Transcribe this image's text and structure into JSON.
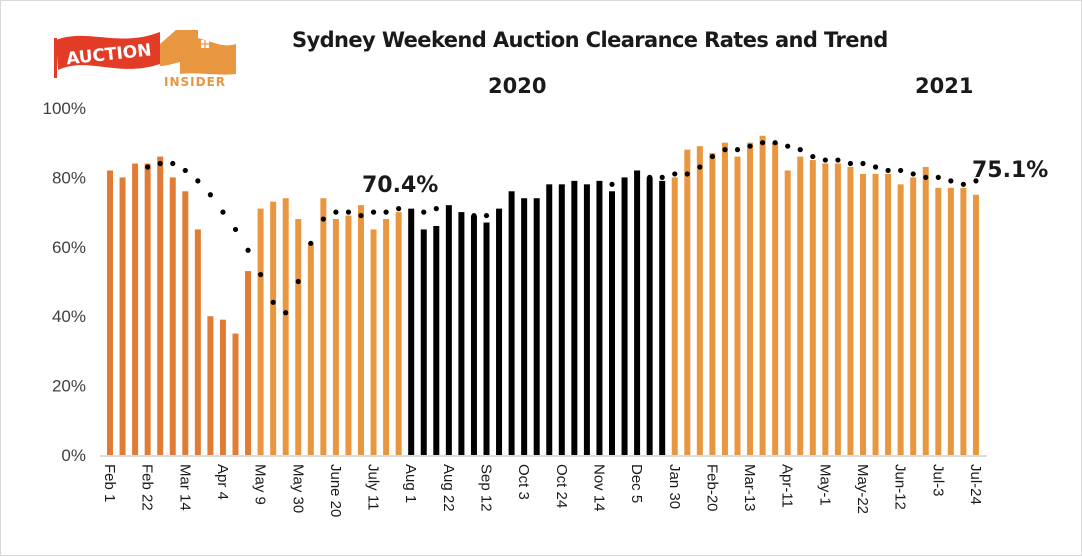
{
  "logo": {
    "word1": "AUCTION",
    "word2": "INSIDER",
    "colors": {
      "red": "#e23b26",
      "orange": "#e8963f"
    }
  },
  "chart_data": {
    "type": "bar",
    "title": "Sydney Weekend Auction Clearance Rates and Trend",
    "year_labels": [
      "2020",
      "2021"
    ],
    "xlabel": "",
    "ylabel": "",
    "ylim": [
      0,
      100
    ],
    "yticks": [
      "0%",
      "20%",
      "40%",
      "60%",
      "80%",
      "100%"
    ],
    "grid": false,
    "tick_labels": [
      "Feb 1",
      "Feb 22",
      "Mar 14",
      "Apr 4",
      "May 9",
      "May 30",
      "June 20",
      "July 11",
      "Aug 1",
      "Aug 22",
      "Sep 12",
      "Oct 3",
      "Oct 24",
      "Nov 14",
      "Dec 5",
      "Jan 30",
      "Feb-20",
      "Mar-13",
      "Apr-11",
      "May-1",
      "May-22",
      "Jun-12",
      "Jul-3",
      "Jul-24"
    ],
    "tick_every": 3,
    "series": [
      {
        "name": "Clearance rate",
        "values": [
          82,
          80,
          84,
          84,
          86,
          80,
          76,
          65,
          40,
          39,
          35,
          53,
          71,
          73,
          74,
          68,
          61,
          74,
          68,
          69,
          72,
          65,
          68,
          70,
          71,
          65,
          66,
          72,
          70,
          69,
          67,
          71,
          76,
          74,
          74,
          78,
          78,
          79,
          78,
          79,
          76,
          80,
          82,
          80,
          79,
          80,
          88,
          89,
          87,
          90,
          86,
          90,
          92,
          90,
          82,
          86,
          85,
          84,
          84,
          83,
          81,
          81,
          81,
          78,
          80,
          83,
          77,
          77,
          77,
          75
        ],
        "highlight_range": [
          24,
          44
        ]
      },
      {
        "name": "Trend",
        "type": "line",
        "start_index": 3,
        "values": [
          83,
          84,
          84,
          82,
          79,
          75,
          70,
          65,
          59,
          52,
          44,
          41,
          50,
          61,
          68,
          70,
          70,
          69,
          70,
          70,
          71,
          70,
          70,
          71,
          70,
          69,
          69,
          69,
          69,
          70,
          70,
          72,
          73,
          74,
          75,
          77,
          78,
          78,
          79,
          79,
          80,
          80,
          81,
          81,
          83,
          86,
          88,
          88,
          89,
          90,
          90,
          89,
          88,
          86,
          85,
          85,
          84,
          84,
          83,
          82,
          82,
          81,
          80,
          80,
          79,
          78,
          79
        ]
      }
    ],
    "annotations": [
      "70.4%",
      "75.1%"
    ],
    "colors": {
      "bar": "#e8963f",
      "bar_dark": "#e07c36",
      "highlight": "#000000",
      "trend": "#000000"
    }
  }
}
